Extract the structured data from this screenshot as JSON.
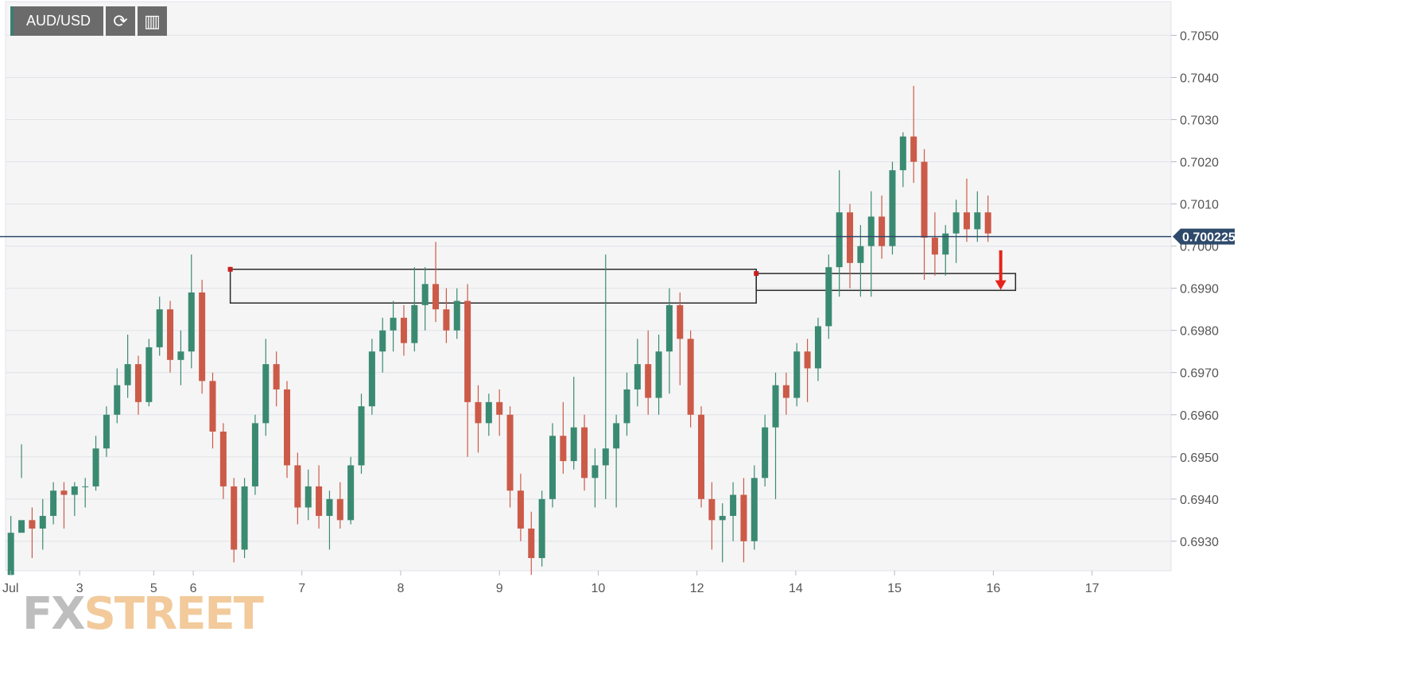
{
  "toolbar": {
    "symbol": "AUD/USD"
  },
  "chart_data": {
    "type": "candlestick",
    "symbol": "AUD/USD",
    "ylim": [
      0.6923,
      0.7058
    ],
    "y_ticks": [
      "0.7050",
      "0.7040",
      "0.7030",
      "0.7020",
      "0.7010",
      "0.7000",
      "0.6990",
      "0.6980",
      "0.6970",
      "0.6960",
      "0.6950",
      "0.6940",
      "0.6930"
    ],
    "y_tick_values": [
      0.705,
      0.704,
      0.703,
      0.702,
      0.701,
      0.7,
      0.699,
      0.698,
      0.697,
      0.696,
      0.695,
      0.694,
      0.693
    ],
    "x_ticks": [
      "Jul",
      "3",
      "5",
      "6",
      "7",
      "8",
      "9",
      "10",
      "12",
      "14",
      "15",
      "16",
      "17"
    ],
    "x_tick_pos": [
      0.1,
      1.5,
      3,
      3.8,
      6,
      8,
      10,
      12,
      14,
      16,
      18,
      20,
      22
    ],
    "x_range": [
      0,
      23.6
    ],
    "last_price": 0.700225,
    "last_price_label": "0.700225",
    "colors": {
      "up": "#3a8a72",
      "down": "#cc5a48",
      "price_line": "#2e4a6b",
      "arrow": "#e8231a"
    },
    "series": [
      [
        0.6922,
        0.6936,
        0.6925,
        0.6932
      ],
      [
        0.6932,
        0.6953,
        0.6945,
        0.6935
      ],
      [
        0.6935,
        0.6938,
        0.6926,
        0.6933
      ],
      [
        0.6933,
        0.694,
        0.6928,
        0.6936
      ],
      [
        0.6936,
        0.6944,
        0.6934,
        0.6942
      ],
      [
        0.6942,
        0.6944,
        0.6933,
        0.6941
      ],
      [
        0.6941,
        0.6944,
        0.6936,
        0.6943
      ],
      [
        0.6943,
        0.6945,
        0.6938,
        0.6943
      ],
      [
        0.6943,
        0.6955,
        0.6942,
        0.6952
      ],
      [
        0.6952,
        0.6962,
        0.695,
        0.696
      ],
      [
        0.696,
        0.6971,
        0.6958,
        0.6967
      ],
      [
        0.6967,
        0.6979,
        0.6964,
        0.6972
      ],
      [
        0.6972,
        0.6974,
        0.696,
        0.6963
      ],
      [
        0.6963,
        0.6978,
        0.6962,
        0.6976
      ],
      [
        0.6976,
        0.6988,
        0.6974,
        0.6985
      ],
      [
        0.6985,
        0.6987,
        0.697,
        0.6973
      ],
      [
        0.6973,
        0.698,
        0.6967,
        0.6975
      ],
      [
        0.6975,
        0.6998,
        0.6971,
        0.6989
      ],
      [
        0.6989,
        0.6992,
        0.6965,
        0.6968
      ],
      [
        0.6968,
        0.697,
        0.6952,
        0.6956
      ],
      [
        0.6956,
        0.6958,
        0.694,
        0.6943
      ],
      [
        0.6943,
        0.6945,
        0.6925,
        0.6928
      ],
      [
        0.6928,
        0.6945,
        0.6926,
        0.6943
      ],
      [
        0.6943,
        0.696,
        0.6941,
        0.6958
      ],
      [
        0.6958,
        0.6978,
        0.6955,
        0.6972
      ],
      [
        0.6972,
        0.6975,
        0.6962,
        0.6966
      ],
      [
        0.6966,
        0.6968,
        0.6945,
        0.6948
      ],
      [
        0.6948,
        0.6951,
        0.6934,
        0.6938
      ],
      [
        0.6938,
        0.6947,
        0.6935,
        0.6943
      ],
      [
        0.6943,
        0.6948,
        0.6933,
        0.6936
      ],
      [
        0.6936,
        0.6942,
        0.6928,
        0.694
      ],
      [
        0.694,
        0.6944,
        0.6933,
        0.6935
      ],
      [
        0.6935,
        0.695,
        0.6934,
        0.6948
      ],
      [
        0.6948,
        0.6965,
        0.6946,
        0.6962
      ],
      [
        0.6962,
        0.6978,
        0.696,
        0.6975
      ],
      [
        0.6975,
        0.6983,
        0.697,
        0.698
      ],
      [
        0.698,
        0.6987,
        0.6975,
        0.6983
      ],
      [
        0.6983,
        0.6986,
        0.6974,
        0.6977
      ],
      [
        0.6977,
        0.6995,
        0.6975,
        0.6986
      ],
      [
        0.6986,
        0.6995,
        0.698,
        0.6991
      ],
      [
        0.6991,
        0.7001,
        0.6982,
        0.6985
      ],
      [
        0.6985,
        0.699,
        0.6977,
        0.698
      ],
      [
        0.698,
        0.699,
        0.6978,
        0.6987
      ],
      [
        0.6987,
        0.6991,
        0.695,
        0.6963
      ],
      [
        0.6963,
        0.6967,
        0.6951,
        0.6958
      ],
      [
        0.6958,
        0.6965,
        0.6955,
        0.6963
      ],
      [
        0.6963,
        0.6966,
        0.6955,
        0.696
      ],
      [
        0.696,
        0.6962,
        0.6938,
        0.6942
      ],
      [
        0.6942,
        0.6946,
        0.693,
        0.6933
      ],
      [
        0.6933,
        0.6937,
        0.6922,
        0.6926
      ],
      [
        0.6926,
        0.6942,
        0.6924,
        0.694
      ],
      [
        0.694,
        0.6958,
        0.6938,
        0.6955
      ],
      [
        0.6955,
        0.6963,
        0.6946,
        0.6949
      ],
      [
        0.6949,
        0.6969,
        0.6947,
        0.6957
      ],
      [
        0.6957,
        0.696,
        0.6942,
        0.6945
      ],
      [
        0.6945,
        0.6952,
        0.6938,
        0.6948
      ],
      [
        0.6948,
        0.6998,
        0.694,
        0.6952
      ],
      [
        0.6952,
        0.696,
        0.6938,
        0.6958
      ],
      [
        0.6958,
        0.697,
        0.6955,
        0.6966
      ],
      [
        0.6966,
        0.6978,
        0.6962,
        0.6972
      ],
      [
        0.6972,
        0.698,
        0.696,
        0.6964
      ],
      [
        0.6964,
        0.6979,
        0.696,
        0.6975
      ],
      [
        0.6975,
        0.699,
        0.6965,
        0.6986
      ],
      [
        0.6986,
        0.6989,
        0.6967,
        0.6978
      ],
      [
        0.6978,
        0.698,
        0.6957,
        0.696
      ],
      [
        0.696,
        0.6962,
        0.6938,
        0.694
      ],
      [
        0.694,
        0.6944,
        0.6928,
        0.6935
      ],
      [
        0.6935,
        0.6939,
        0.6925,
        0.6936
      ],
      [
        0.6936,
        0.6944,
        0.693,
        0.6941
      ],
      [
        0.6941,
        0.6945,
        0.6925,
        0.693
      ],
      [
        0.693,
        0.6948,
        0.6928,
        0.6945
      ],
      [
        0.6945,
        0.696,
        0.6943,
        0.6957
      ],
      [
        0.6957,
        0.697,
        0.694,
        0.6967
      ],
      [
        0.6967,
        0.697,
        0.696,
        0.6964
      ],
      [
        0.6964,
        0.6977,
        0.6962,
        0.6975
      ],
      [
        0.6975,
        0.6978,
        0.6963,
        0.6971
      ],
      [
        0.6971,
        0.6983,
        0.6968,
        0.6981
      ],
      [
        0.6981,
        0.6998,
        0.6978,
        0.6995
      ],
      [
        0.6995,
        0.7018,
        0.6988,
        0.7008
      ],
      [
        0.7008,
        0.701,
        0.699,
        0.6996
      ],
      [
        0.6996,
        0.7005,
        0.6988,
        0.7
      ],
      [
        0.7,
        0.7013,
        0.6988,
        0.7007
      ],
      [
        0.7007,
        0.7012,
        0.6997,
        0.7
      ],
      [
        0.7,
        0.702,
        0.6998,
        0.7018
      ],
      [
        0.7018,
        0.7027,
        0.7014,
        0.7026
      ],
      [
        0.7026,
        0.7038,
        0.7015,
        0.702
      ],
      [
        0.702,
        0.7023,
        0.6992,
        0.7002
      ],
      [
        0.7002,
        0.7008,
        0.6993,
        0.6998
      ],
      [
        0.6998,
        0.7005,
        0.6993,
        0.7003
      ],
      [
        0.7003,
        0.7011,
        0.6996,
        0.7008
      ],
      [
        0.7008,
        0.7016,
        0.7001,
        0.7004
      ],
      [
        0.7004,
        0.7013,
        0.7001,
        0.7008
      ],
      [
        0.7008,
        0.7012,
        0.7001,
        0.7003
      ]
    ],
    "drawings": [
      {
        "shape": "rect",
        "x0": 4.55,
        "x1": 15.2,
        "y0": 0.69945,
        "y1": 0.69865
      },
      {
        "shape": "rect",
        "x0": 15.2,
        "x1": 20.45,
        "y0": 0.69935,
        "y1": 0.69895
      },
      {
        "shape": "arrow",
        "x": 20.15,
        "y0": 0.6999,
        "y1": 0.699
      }
    ],
    "watermark": {
      "fx": "FX",
      "street": "STREET"
    }
  }
}
